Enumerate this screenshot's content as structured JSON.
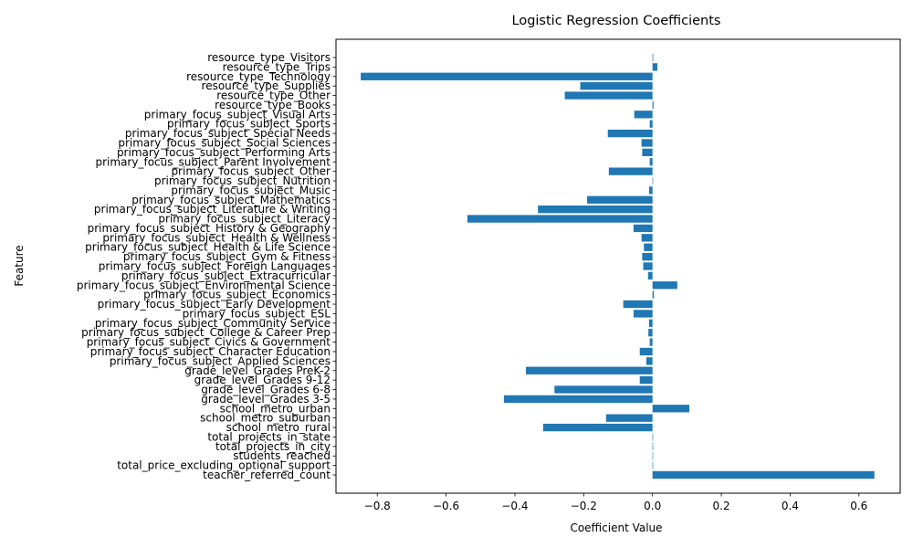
{
  "chart_data": {
    "type": "bar",
    "orientation": "horizontal",
    "title": "Logistic Regression Coefficients",
    "xlabel": "Coefficient Value",
    "ylabel": "Feature",
    "xlim": [
      -0.92,
      0.72
    ],
    "xticks": [
      -0.8,
      -0.6,
      -0.4,
      -0.2,
      0.0,
      0.2,
      0.4,
      0.6
    ],
    "xtick_labels": [
      "−0.8",
      "−0.6",
      "−0.4",
      "−0.2",
      "0.0",
      "0.2",
      "0.4",
      "0.6"
    ],
    "grid": false,
    "bar_color": "#1f77b4",
    "categories": [
      "teacher_referred_count",
      "total_price_excluding_optional_support",
      "students_reached",
      "total_projects_in_city",
      "total_projects_in_state",
      "school_metro_rural",
      "school_metro_suburban",
      "school_metro_urban",
      "grade_level_Grades 3-5",
      "grade_level_Grades 6-8",
      "grade_level_Grades 9-12",
      "grade_level_Grades PreK-2",
      "primary_focus_subject_Applied Sciences",
      "primary_focus_subject_Character Education",
      "primary_focus_subject_Civics & Government",
      "primary_focus_subject_College & Career Prep",
      "primary_focus_subject_Community Service",
      "primary_focus_subject_ESL",
      "primary_focus_subject_Early Development",
      "primary_focus_subject_Economics",
      "primary_focus_subject_Environmental Science",
      "primary_focus_subject_Extracurricular",
      "primary_focus_subject_Foreign Languages",
      "primary_focus_subject_Gym & Fitness",
      "primary_focus_subject_Health & Life Science",
      "primary_focus_subject_Health & Wellness",
      "primary_focus_subject_History & Geography",
      "primary_focus_subject_Literacy",
      "primary_focus_subject_Literature & Writing",
      "primary_focus_subject_Mathematics",
      "primary_focus_subject_Music",
      "primary_focus_subject_Nutrition",
      "primary_focus_subject_Other",
      "primary_focus_subject_Parent Involvement",
      "primary_focus_subject_Performing Arts",
      "primary_focus_subject_Social Sciences",
      "primary_focus_subject_Special Needs",
      "primary_focus_subject_Sports",
      "primary_focus_subject_Visual Arts",
      "resource_type_Books",
      "resource_type_Other",
      "resource_type_Supplies",
      "resource_type_Technology",
      "resource_type_Trips",
      "resource_type_Visitors"
    ],
    "values": [
      0.645,
      0.0,
      0.0,
      0.0,
      0.0,
      -0.318,
      -0.135,
      0.107,
      -0.432,
      -0.285,
      -0.037,
      -0.368,
      -0.018,
      -0.037,
      -0.008,
      -0.012,
      -0.01,
      -0.055,
      -0.085,
      0.004,
      0.072,
      -0.013,
      -0.027,
      -0.03,
      -0.025,
      -0.032,
      -0.055,
      -0.538,
      -0.333,
      -0.19,
      -0.01,
      0.0,
      -0.127,
      -0.008,
      -0.03,
      -0.032,
      -0.13,
      -0.008,
      -0.053,
      0.003,
      -0.255,
      -0.21,
      -0.848,
      0.014,
      0.002
    ]
  }
}
